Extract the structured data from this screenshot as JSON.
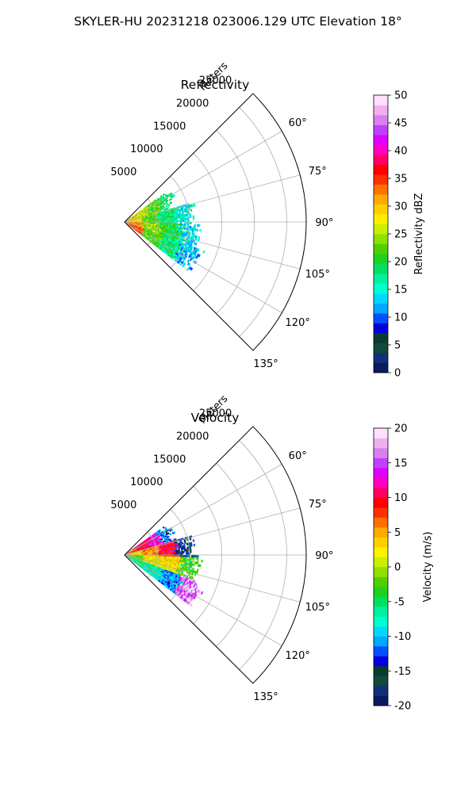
{
  "suptitle": "SKYLER-HU  20231218  023006.129 UTC Elevation 18°",
  "chart_data": [
    {
      "type": "heatmap",
      "projection": "polar-sector",
      "title": "Reflectivity",
      "radial_label": "Meters",
      "r_ticks": [
        5000,
        10000,
        15000,
        20000,
        25000
      ],
      "r_lim": [
        0,
        28000
      ],
      "theta_ticks": [
        60,
        75,
        90,
        105,
        120,
        135
      ],
      "theta_lim": [
        45,
        135
      ],
      "grid": true,
      "colorbar": {
        "label": "Reflectivity dBZ",
        "ticks": [
          0,
          5,
          10,
          15,
          20,
          25,
          30,
          35,
          40,
          45,
          50
        ],
        "range": [
          0,
          50
        ],
        "colors": [
          "#0a1a5e",
          "#12307a",
          "#0f4a3a",
          "#0b3a30",
          "#0000e0",
          "#0050ff",
          "#00a8ff",
          "#00d8ff",
          "#00ffd0",
          "#00f0a0",
          "#00e060",
          "#20d020",
          "#50d000",
          "#90e000",
          "#c8f000",
          "#fff000",
          "#ffd000",
          "#ffaa00",
          "#ff7000",
          "#ff3000",
          "#ff0000",
          "#ff0060",
          "#ff00c0",
          "#e000ff",
          "#c040ff",
          "#d880f0",
          "#f0b0f0",
          "#ffe0ff"
        ]
      },
      "echo": {
        "max_range_m": [
          8000,
          10500,
          11500,
          12500
        ],
        "dominant_values": [
          [
            30,
            26,
            22,
            18
          ],
          [
            28,
            22,
            18,
            15
          ],
          [
            32,
            24,
            20,
            14
          ],
          [
            35,
            22,
            18,
            13
          ]
        ]
      }
    },
    {
      "type": "heatmap",
      "projection": "polar-sector",
      "title": "Velocity",
      "radial_label": "Meters",
      "r_ticks": [
        5000,
        10000,
        15000,
        20000,
        25000
      ],
      "r_lim": [
        0,
        28000
      ],
      "theta_ticks": [
        60,
        75,
        90,
        105,
        120,
        135
      ],
      "theta_lim": [
        45,
        135
      ],
      "grid": true,
      "colorbar": {
        "label": "Velocity (m/s)",
        "ticks": [
          -20,
          -15,
          -10,
          -5,
          0,
          5,
          10,
          15,
          20
        ],
        "range": [
          -20,
          20
        ],
        "colors": [
          "#0a1a5e",
          "#12307a",
          "#0f4a3a",
          "#0b3a30",
          "#0000e0",
          "#0050ff",
          "#00a8ff",
          "#00d8ff",
          "#00ffd0",
          "#00f0a0",
          "#00e060",
          "#20d020",
          "#50d000",
          "#90e000",
          "#c8f000",
          "#fff000",
          "#ffd000",
          "#ffaa00",
          "#ff7000",
          "#ff3000",
          "#ff0000",
          "#ff0060",
          "#ff00c0",
          "#e000ff",
          "#c040ff",
          "#d880f0",
          "#f0b0f0",
          "#ffe0ff"
        ]
      },
      "echo": {
        "max_range_m": [
          8000,
          10500,
          11500,
          12500
        ],
        "dominant_values": [
          [
            8,
            10,
            13,
            -12
          ],
          [
            3,
            6,
            10,
            -14
          ],
          [
            -2,
            2,
            3,
            -3
          ],
          [
            -6,
            -7,
            -11,
            16
          ]
        ]
      }
    }
  ]
}
